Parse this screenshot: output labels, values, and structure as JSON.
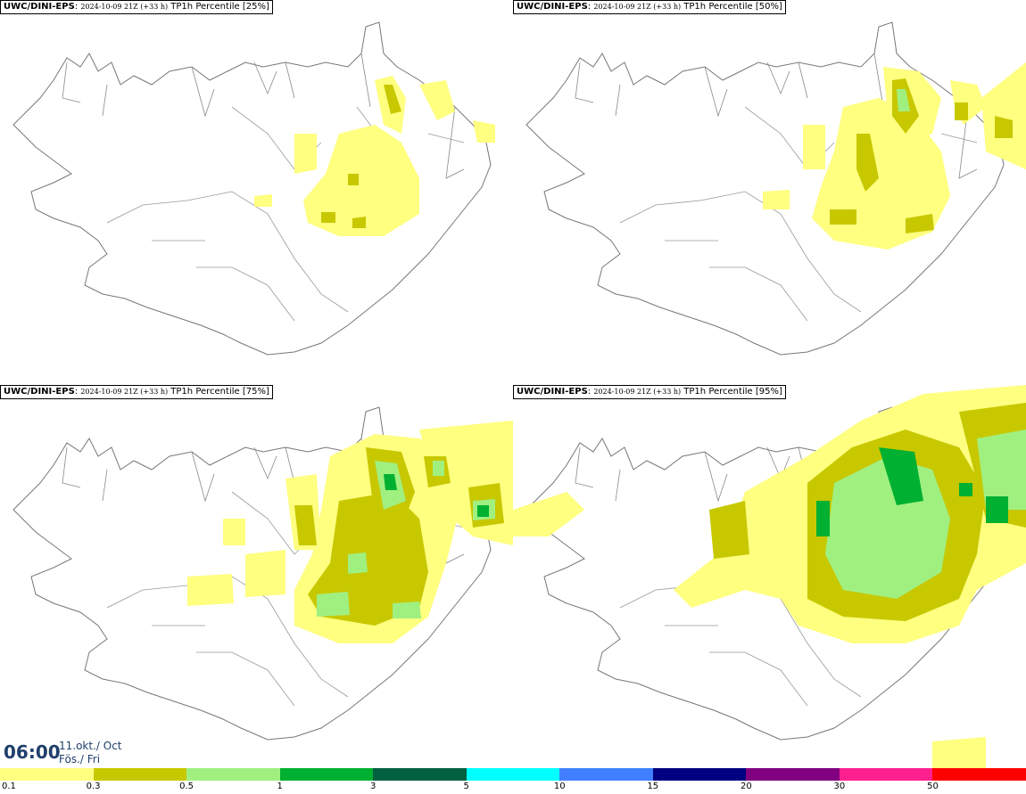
{
  "panels": [
    {
      "model": "UWC/DINI-EPS",
      "run": "2024-10-09 21Z (+33 h)",
      "param": "TP1h Percentile [25%]"
    },
    {
      "model": "UWC/DINI-EPS",
      "run": "2024-10-09 21Z (+33 h)",
      "param": "TP1h Percentile [50%]"
    },
    {
      "model": "UWC/DINI-EPS",
      "run": "2024-10-09 21Z (+33 h)",
      "param": "TP1h Percentile [75%]"
    },
    {
      "model": "UWC/DINI-EPS",
      "run": "2024-10-09 21Z (+33 h)",
      "param": "TP1h Percentile [95%]"
    }
  ],
  "valid_time": {
    "time": "06:00",
    "date": "11.okt./ Oct",
    "day": "Fös./ Fri"
  },
  "legend": {
    "ticks": [
      "0.1",
      "0.3",
      "0.5",
      "1",
      "3",
      "5",
      "10",
      "15",
      "20",
      "30",
      "50"
    ],
    "colors": [
      "#ffff80",
      "#c8c800",
      "#a0f080",
      "#00b030",
      "#006040",
      "#00ffff",
      "#4080ff",
      "#000080",
      "#800080",
      "#ff2090",
      "#ff0000"
    ]
  }
}
